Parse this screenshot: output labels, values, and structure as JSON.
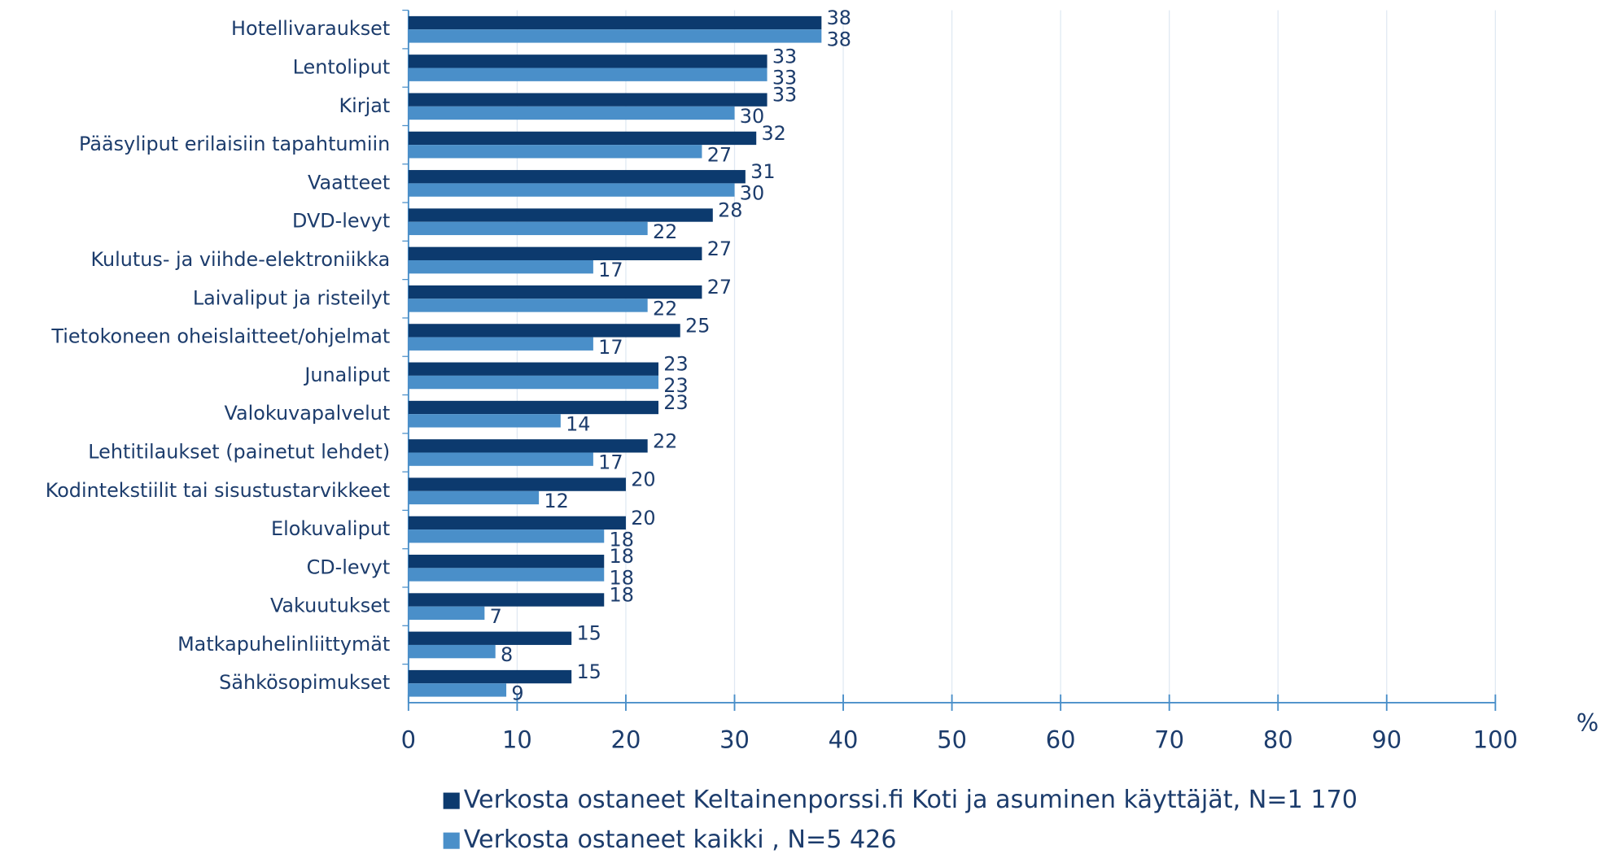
{
  "chart_data": {
    "type": "bar",
    "orientation": "horizontal",
    "categories": [
      "Hotellivaraukset",
      "Lentoliput",
      "Kirjat",
      "Pääsyliput erilaisiin tapahtumiin",
      "Vaatteet",
      "DVD-levyt",
      "Kulutus- ja viihde-elektroniikka",
      "Laivaliput ja risteilyt",
      "Tietokoneen oheislaitteet/ohjelmat",
      "Junaliput",
      "Valokuvapalvelut",
      "Lehtitilaukset (painetut lehdet)",
      "Kodintekstiilit tai sisustustarvikkeet",
      "Elokuvaliput",
      "CD-levyt",
      "Vakuutukset",
      "Matkapuhelinliittymät",
      "Sähkösopimukset"
    ],
    "series": [
      {
        "name": "Verkosta ostaneet Keltainenporssi.fi Koti ja asuminen käyttäjät, N=1 170",
        "color": "#0c3a6e",
        "values": [
          38,
          33,
          33,
          32,
          31,
          28,
          27,
          27,
          25,
          23,
          23,
          22,
          20,
          20,
          18,
          18,
          15,
          15
        ]
      },
      {
        "name": "Verkosta ostaneet kaikki , N=5 426",
        "color": "#4a8fc9",
        "values": [
          38,
          33,
          30,
          27,
          30,
          22,
          17,
          22,
          17,
          23,
          14,
          17,
          12,
          18,
          18,
          7,
          8,
          9
        ]
      }
    ],
    "x_label": "%",
    "xlim": [
      0,
      100
    ],
    "xticks": [
      0,
      10,
      20,
      30,
      40,
      50,
      60,
      70,
      80,
      90,
      100
    ],
    "grid": true
  }
}
